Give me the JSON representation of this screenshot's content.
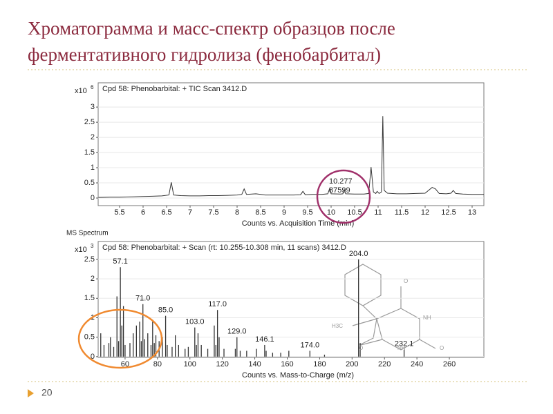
{
  "slide": {
    "title_lines": [
      "Хроматограмма и масс-спектр образцов после",
      "ферментативного гидролиза (фенобарбитал)"
    ],
    "page_number": "20"
  },
  "chart_data": [
    {
      "type": "line",
      "title": "Cpd 58: Phenobarbital: + TIC Scan 3412.D",
      "x_label": "Counts vs. Acquisition Time (min)",
      "y_multiplier": "x10",
      "y_exponent": "6",
      "x": [
        5.05,
        5.3,
        5.5,
        5.8,
        6.0,
        6.2,
        6.4,
        6.55,
        6.6,
        6.65,
        6.8,
        7.0,
        7.2,
        7.4,
        7.6,
        7.8,
        8.0,
        8.1,
        8.15,
        8.2,
        8.4,
        8.6,
        8.8,
        9.0,
        9.2,
        9.35,
        9.4,
        9.45,
        9.6,
        9.8,
        9.93,
        9.97,
        10.0,
        10.2,
        10.25,
        10.28,
        10.31,
        10.5,
        10.7,
        10.8,
        10.85,
        10.9,
        10.95,
        10.98,
        11.02,
        11.07,
        11.1,
        11.13,
        11.2,
        11.4,
        11.6,
        11.8,
        12.0,
        12.15,
        12.22,
        12.3,
        12.45,
        12.55,
        12.6,
        12.65,
        12.8,
        13.0,
        13.25
      ],
      "values": [
        0.02,
        0.03,
        0.03,
        0.04,
        0.05,
        0.06,
        0.07,
        0.1,
        0.52,
        0.1,
        0.08,
        0.07,
        0.07,
        0.08,
        0.08,
        0.09,
        0.1,
        0.12,
        0.3,
        0.12,
        0.14,
        0.1,
        0.1,
        0.1,
        0.1,
        0.11,
        0.22,
        0.11,
        0.12,
        0.12,
        0.14,
        0.32,
        0.14,
        0.13,
        0.14,
        0.28,
        0.14,
        0.13,
        0.13,
        0.15,
        1.02,
        0.2,
        0.15,
        0.22,
        0.15,
        0.2,
        2.7,
        0.25,
        0.16,
        0.14,
        0.14,
        0.15,
        0.16,
        0.35,
        0.3,
        0.15,
        0.14,
        0.16,
        0.25,
        0.15,
        0.13,
        0.12,
        0.12
      ],
      "color": "#333333",
      "xlim": [
        5.044,
        13.25
      ],
      "ylim": [
        -0.25,
        3.8
      ],
      "xticks": [
        5.5,
        6,
        6.5,
        7,
        7.5,
        8,
        8.5,
        9,
        9.5,
        10,
        10.5,
        11,
        11.5,
        12,
        12.5,
        13
      ],
      "yticks": [
        0,
        0.5,
        1,
        1.5,
        2,
        2.5,
        3
      ],
      "annotations": [
        "10.277",
        "87599"
      ]
    },
    {
      "type": "bar",
      "panel_label": "MS Spectrum",
      "title": "Cpd 58: Phenobarbital: + Scan (rt: 10.255-10.308 min, 11 scans) 3412.D",
      "x_label": "Counts vs. Mass-to-Charge (m/z)",
      "y_multiplier": "x10",
      "y_exponent": "3",
      "x": [
        45,
        47,
        50,
        51,
        53,
        55,
        56,
        57.1,
        58,
        59,
        60,
        63,
        65,
        67,
        69,
        70,
        71.0,
        72,
        74,
        76,
        77,
        78,
        79,
        81,
        83,
        85.0,
        86,
        89,
        91,
        93,
        97,
        99,
        103.0,
        104,
        105,
        107,
        111,
        115,
        116,
        117.0,
        118,
        121,
        128,
        129.0,
        131,
        135,
        141,
        146.1,
        147,
        151,
        156,
        161,
        174.0,
        183,
        204.0,
        205,
        232.1
      ],
      "values": [
        0.6,
        0.3,
        0.35,
        0.5,
        0.25,
        1.55,
        0.4,
        2.3,
        0.8,
        1.3,
        0.3,
        0.35,
        0.6,
        0.8,
        0.9,
        0.4,
        1.35,
        0.45,
        0.6,
        0.3,
        0.9,
        0.35,
        0.55,
        0.4,
        0.5,
        1.05,
        0.3,
        0.25,
        0.55,
        0.3,
        0.2,
        0.25,
        0.75,
        0.3,
        0.6,
        0.3,
        0.2,
        0.8,
        0.3,
        1.2,
        0.5,
        0.2,
        0.2,
        0.5,
        0.15,
        0.15,
        0.2,
        0.3,
        0.15,
        0.1,
        0.1,
        0.15,
        0.15,
        0.05,
        2.5,
        0.35,
        0.18
      ],
      "x_labels": [
        null,
        null,
        null,
        null,
        null,
        null,
        null,
        "57.1",
        null,
        null,
        null,
        null,
        null,
        null,
        null,
        null,
        "71.0",
        null,
        null,
        null,
        null,
        null,
        null,
        null,
        null,
        "85.0",
        null,
        null,
        null,
        null,
        null,
        null,
        "103.0",
        null,
        null,
        null,
        null,
        null,
        null,
        "117.0",
        null,
        null,
        null,
        "129.0",
        null,
        null,
        null,
        "146.1",
        null,
        null,
        null,
        null,
        "174.0",
        null,
        "204.0",
        null,
        "232.1"
      ],
      "color": "#333333",
      "xlim": [
        43.4,
        281.3
      ],
      "ylim": [
        -0.02,
        2.96
      ],
      "xticks": [
        60,
        80,
        100,
        120,
        140,
        160,
        180,
        200,
        220,
        240,
        260
      ],
      "yticks": [
        0,
        0.5,
        1,
        1.5,
        2,
        2.5
      ],
      "structure_labels": [
        "H3C",
        "NH",
        "O",
        "NH",
        "O",
        "O"
      ]
    }
  ]
}
